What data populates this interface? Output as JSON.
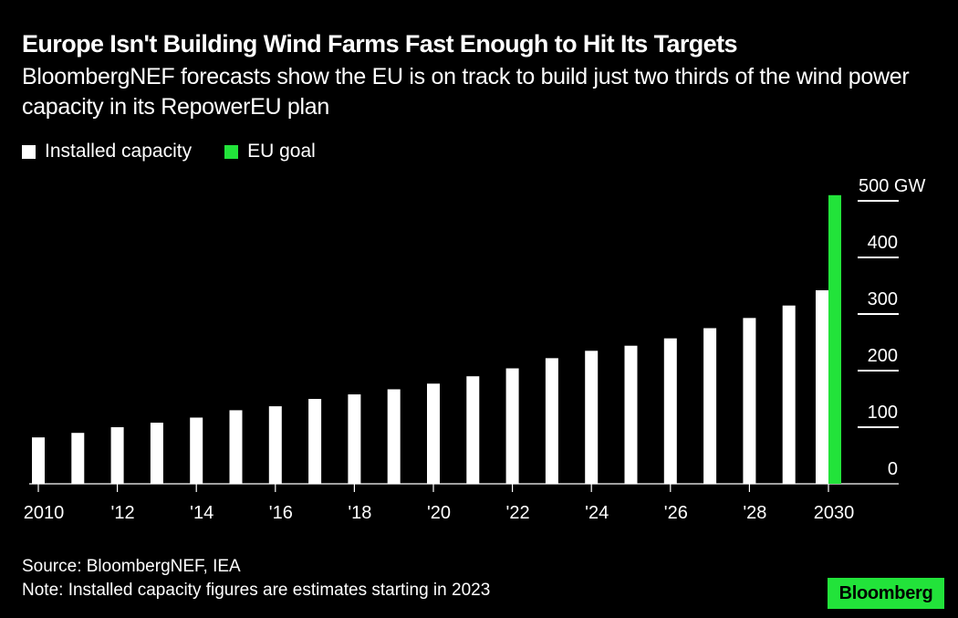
{
  "chart_data": {
    "type": "bar",
    "title": "Europe Isn't Building Wind Farms Fast Enough to Hit Its Targets",
    "subtitle": "BloombergNEF forecasts show the EU is on track to build just two thirds of the wind power capacity in its RepowerEU plan",
    "xlabel": "",
    "ylabel": "",
    "y_unit": "GW",
    "ylim": [
      0,
      500
    ],
    "yticks": [
      0,
      100,
      200,
      300,
      400,
      500
    ],
    "ytick_labels": [
      "0",
      "100",
      "200",
      "300",
      "400",
      "500 GW"
    ],
    "grid": false,
    "legend_position": "top-left",
    "categories": [
      "2010",
      "2011",
      "2012",
      "2013",
      "2014",
      "2015",
      "2016",
      "2017",
      "2018",
      "2019",
      "2020",
      "2021",
      "2022",
      "2023",
      "2024",
      "2025",
      "2026",
      "2027",
      "2028",
      "2029",
      "2030"
    ],
    "xtick_labels": [
      {
        "year": "2010",
        "label": "2010"
      },
      {
        "year": "2012",
        "label": "'12"
      },
      {
        "year": "2014",
        "label": "'14"
      },
      {
        "year": "2016",
        "label": "'16"
      },
      {
        "year": "2018",
        "label": "'18"
      },
      {
        "year": "2020",
        "label": "'20"
      },
      {
        "year": "2022",
        "label": "'22"
      },
      {
        "year": "2024",
        "label": "'24"
      },
      {
        "year": "2026",
        "label": "'26"
      },
      {
        "year": "2028",
        "label": "'28"
      },
      {
        "year": "2030",
        "label": "2030"
      }
    ],
    "series": [
      {
        "name": "Installed capacity",
        "color": "#ffffff",
        "values": [
          82,
          90,
          100,
          108,
          117,
          130,
          137,
          150,
          158,
          167,
          177,
          190,
          204,
          222,
          235,
          244,
          257,
          275,
          293,
          315,
          342
        ]
      },
      {
        "name": "EU goal",
        "color": "#22e33a",
        "values": [
          null,
          null,
          null,
          null,
          null,
          null,
          null,
          null,
          null,
          null,
          null,
          null,
          null,
          null,
          null,
          null,
          null,
          null,
          null,
          null,
          510
        ]
      }
    ]
  },
  "legend": {
    "items": [
      {
        "label": "Installed capacity",
        "color": "#ffffff"
      },
      {
        "label": "EU goal",
        "color": "#22e33a"
      }
    ]
  },
  "footer": {
    "source": "Source: BloombergNEF, IEA",
    "note": "Note: Installed capacity figures are estimates starting in 2023"
  },
  "branding": {
    "logo_text": "Bloomberg",
    "logo_color": "#22e33a"
  }
}
